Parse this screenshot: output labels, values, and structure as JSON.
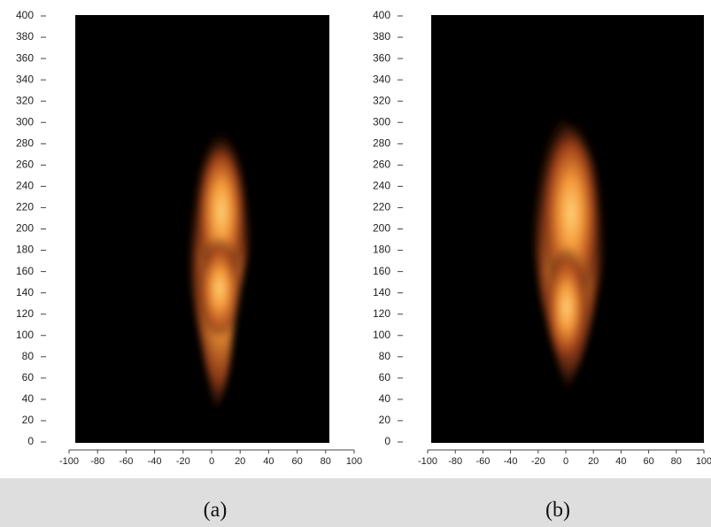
{
  "panels": [
    {
      "label": "(a)",
      "xlim": [
        -100,
        100
      ],
      "ylim": [
        0,
        400
      ],
      "xticks": [
        -100,
        -80,
        -60,
        -40,
        -20,
        0,
        20,
        40,
        60,
        80,
        100
      ],
      "yticks": [
        0,
        20,
        40,
        60,
        80,
        100,
        120,
        140,
        160,
        180,
        200,
        220,
        240,
        260,
        280,
        300,
        320,
        340,
        360,
        380,
        400
      ]
    },
    {
      "label": "(b)",
      "xlim": [
        -100,
        100
      ],
      "ylim": [
        0,
        400
      ],
      "xticks": [
        -100,
        -80,
        -60,
        -40,
        -20,
        0,
        20,
        40,
        60,
        80,
        100
      ],
      "yticks": [
        0,
        20,
        40,
        60,
        80,
        100,
        120,
        140,
        160,
        180,
        200,
        220,
        240,
        260,
        280,
        300,
        320,
        340,
        360,
        380,
        400
      ]
    }
  ]
}
